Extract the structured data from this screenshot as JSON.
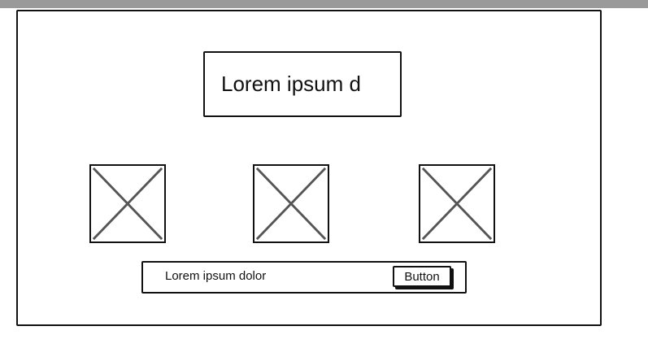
{
  "header": {
    "title": "Lorem ipsum d"
  },
  "images": [
    {
      "icon": "image-placeholder-icon"
    },
    {
      "icon": "image-placeholder-icon"
    },
    {
      "icon": "image-placeholder-icon"
    }
  ],
  "footer_bar": {
    "label": "Lorem ipsum dolor",
    "button_label": "Button"
  }
}
